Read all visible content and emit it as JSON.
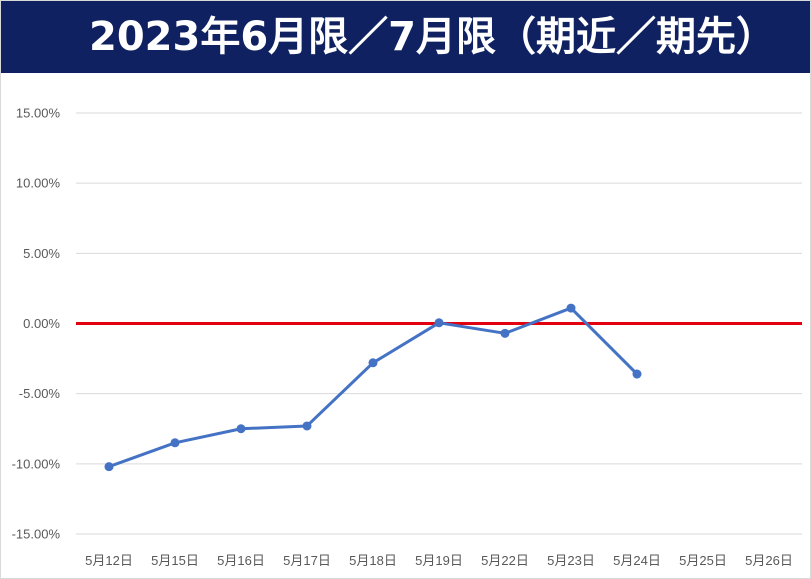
{
  "title": "2023年6月限／7月限（期近／期先）",
  "colors": {
    "banner": "#0f2160",
    "series": "#4472c4",
    "zero_line": "#e3000f",
    "grid": "#d9d9d9",
    "tick_text": "#595959"
  },
  "chart_data": {
    "type": "line",
    "title": "2023年6月限／7月限（期近／期先）",
    "xlabel": "",
    "ylabel": "",
    "categories": [
      "5月12日",
      "5月15日",
      "5月16日",
      "5月17日",
      "5月18日",
      "5月19日",
      "5月22日",
      "5月23日",
      "5月24日",
      "5月25日",
      "5月26日"
    ],
    "series": [
      {
        "values": [
          -10.2,
          -8.5,
          -7.5,
          -7.3,
          -2.8,
          0.05,
          -0.7,
          1.1,
          -3.6,
          null,
          null
        ]
      }
    ],
    "ylim": [
      -15,
      15
    ],
    "yticks": [
      15,
      10,
      5,
      0,
      -5,
      -10,
      -15
    ],
    "ytick_labels": [
      "15.00%",
      "10.00%",
      "5.00%",
      "0.00%",
      "-5.00%",
      "-10.00%",
      "-15.00%"
    ],
    "reference_line": {
      "y": 0,
      "color": "#e3000f"
    },
    "grid": true,
    "legend": "none"
  }
}
